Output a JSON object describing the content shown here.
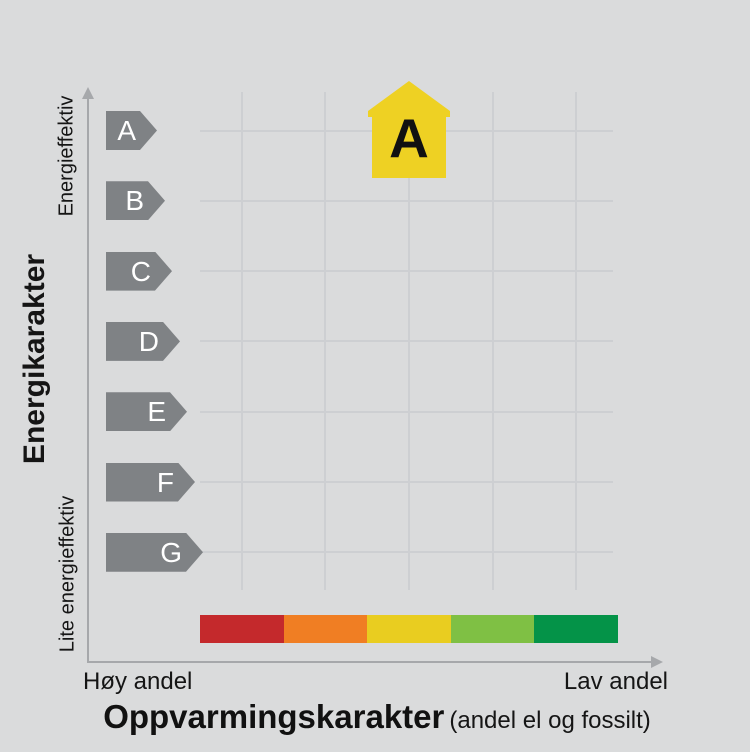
{
  "chart_data": {
    "type": "scatter",
    "description": "Energy label grade chart (energimerke): energy grade A-G vs heating grade 5-color scale",
    "x_axis": {
      "title": "Oppvarmingskarakter",
      "title_note": "(andel el og fossilt)",
      "left_label": "Høy andel",
      "right_label": "Lav andel",
      "columns": 5
    },
    "y_axis": {
      "title": "Energikarakter",
      "top_label": "Energieffektiv",
      "bottom_label": "Lite energieffektiv",
      "categories": [
        "A",
        "B",
        "C",
        "D",
        "E",
        "F",
        "G"
      ]
    },
    "heating_scale": {
      "colors": [
        "#c4292c",
        "#f07e23",
        "#e9cd20",
        "#7fc044",
        "#049348"
      ]
    },
    "marker": {
      "label": "A",
      "energy_grade": "A",
      "heating_column": 3,
      "color": "#eed123"
    }
  },
  "colors": {
    "background": "#dadbdc",
    "grade_arrow": "#7f8285",
    "grade_text": "#ffffff",
    "grid": "#cdcfd2",
    "axis": "#a6a8ab",
    "text": "#151515"
  }
}
